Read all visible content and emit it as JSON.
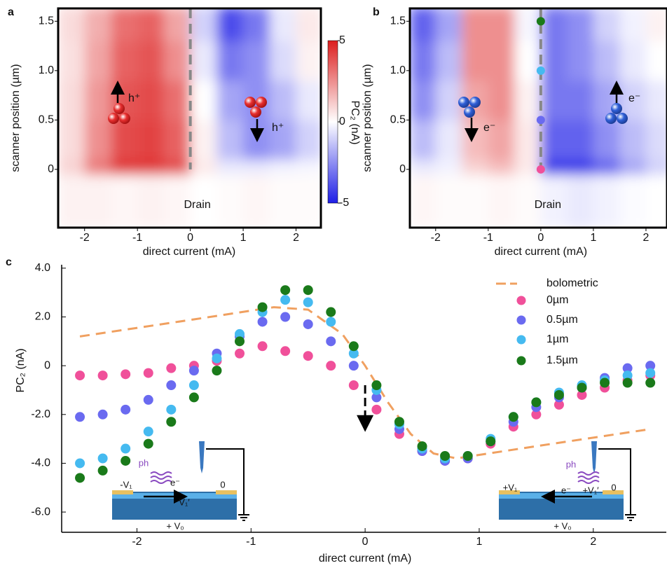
{
  "chart_data": [
    {
      "type": "heatmap",
      "panel_label": "a",
      "x_label": "direct current (mA)",
      "y_label": "scanner position (µm)",
      "xlim": [
        -2.5,
        2.47
      ],
      "ylim": [
        -0.59,
        1.63
      ],
      "xticks": [
        -2,
        -1,
        0,
        1,
        2
      ],
      "yticks": [
        0,
        0.5,
        {
          "value": 1,
          "label": "1.0"
        },
        1.5
      ],
      "x_edges": [
        -2.5,
        -2,
        -1.5,
        -1,
        -0.5,
        0,
        0.5,
        1,
        1.5,
        2,
        2.5
      ],
      "y_edges": [
        -0.6,
        -0.05,
        0.1,
        0.5,
        0.9,
        1.3,
        1.65
      ],
      "z": [
        [
          0.3,
          0.3,
          0.2,
          0.3,
          0.2,
          0,
          0.1,
          0.2,
          0.1,
          0.1
        ],
        [
          1,
          3,
          4.5,
          4.5,
          4,
          0.5,
          -0.5,
          -0.5,
          -0.3,
          -0.2
        ],
        [
          0.8,
          2.5,
          4,
          4.2,
          3.5,
          0.3,
          -1.5,
          -2.5,
          -2,
          -1
        ],
        [
          0.8,
          2.3,
          3.8,
          4,
          3.2,
          0,
          -2,
          -2.5,
          -1.5,
          -0.5
        ],
        [
          0.7,
          2,
          3.5,
          3.8,
          2.5,
          -0.5,
          -3,
          -2.5,
          -0.8,
          0.3
        ],
        [
          0.8,
          1.8,
          3.2,
          3.5,
          2,
          -1,
          -4,
          -3,
          -0.5,
          0.5
        ]
      ],
      "zlim": [
        -5,
        5
      ],
      "zticks": [
        -5,
        0,
        5
      ],
      "colorbar_label": "PC₂ (nA)",
      "divider_x": 0,
      "annotations": [
        "h⁺",
        "h⁺",
        "Drain"
      ]
    },
    {
      "type": "heatmap",
      "panel_label": "b",
      "x_label": "direct current (mA)",
      "y_label": "scanner position (µm)",
      "xlim": [
        -2.49,
        2.4
      ],
      "ylim": [
        -0.59,
        1.63
      ],
      "xticks": [
        -2,
        -1,
        0,
        1,
        2
      ],
      "yticks": [
        0,
        0.5,
        {
          "value": 1,
          "label": "1.0"
        },
        1.5
      ],
      "x_edges": [
        -2.5,
        -2,
        -1.5,
        -1,
        -0.5,
        0,
        0.5,
        1,
        1.5,
        2,
        2.5
      ],
      "y_edges": [
        -0.6,
        -0.05,
        0.1,
        0.5,
        0.9,
        1.3,
        1.65
      ],
      "z": [
        [
          0.2,
          0.1,
          0.1,
          0.2,
          0.1,
          -0.3,
          -0.5,
          -0.3,
          -0.1,
          0
        ],
        [
          -0.5,
          -0.3,
          1,
          1.5,
          0.5,
          -4.5,
          -4.5,
          -3.5,
          -2,
          -1
        ],
        [
          -1.5,
          -0.5,
          1.5,
          2,
          0.5,
          -3.5,
          -3.5,
          -2.5,
          -1.5,
          -0.8
        ],
        [
          -2.5,
          -1,
          2,
          2.5,
          0.3,
          -3,
          -3,
          -2,
          -1,
          -0.5
        ],
        [
          -3,
          -1.5,
          2.5,
          2.5,
          0,
          -3,
          -2.5,
          -1.5,
          -0.5,
          0
        ],
        [
          -3.5,
          -2,
          2.5,
          2.5,
          -0.2,
          -3,
          -2.5,
          -1,
          -0.3,
          0.3
        ]
      ],
      "zlim": [
        -5,
        5
      ],
      "divider_x": 0,
      "markers": {
        "x": [
          0,
          0,
          0,
          0
        ],
        "y": [
          0,
          0.5,
          1,
          1.5
        ],
        "colors": [
          "#f0509a",
          "#6a6af0",
          "#45baf0",
          "#1a7a1a"
        ]
      },
      "annotations": [
        "e⁻",
        "e⁻",
        "Drain"
      ]
    },
    {
      "type": "scatter",
      "panel_label": "c",
      "x_label": "direct current (mA)",
      "y_label": "PC₂ (nA)",
      "xlim": [
        -2.66,
        2.64
      ],
      "ylim": [
        -6.83,
        4.14
      ],
      "xticks": [
        -2,
        -1,
        0,
        1,
        2
      ],
      "yticks": [
        {
          "value": 4,
          "label": "4.0"
        },
        {
          "value": 2,
          "label": "2.0"
        },
        0,
        {
          "value": -2,
          "label": "-2.0"
        },
        {
          "value": -4,
          "label": "-4.0"
        },
        {
          "value": -6,
          "label": "-6.0"
        }
      ],
      "x": [
        -2.5,
        -2.3,
        -2.1,
        -1.9,
        -1.7,
        -1.5,
        -1.3,
        -1.1,
        -0.9,
        -0.7,
        -0.5,
        -0.3,
        -0.1,
        0.1,
        0.3,
        0.5,
        0.7,
        0.9,
        1.1,
        1.3,
        1.5,
        1.7,
        1.9,
        2.1,
        2.3,
        2.5
      ],
      "series": [
        {
          "name": "bolometric",
          "color": "#f0a060",
          "style": "dashed",
          "x": [
            -2.5,
            -1.5,
            -0.8,
            -0.5,
            -0.2,
            0,
            0.2,
            0.4,
            0.6,
            0.8,
            1.5,
            2.5
          ],
          "values": [
            1.2,
            1.9,
            2.4,
            2.3,
            1.3,
            0,
            -1.5,
            -2.8,
            -3.6,
            -3.8,
            -3.3,
            -2.6
          ]
        },
        {
          "name": "0µm",
          "color": "#f0509a",
          "values": [
            -0.4,
            -0.4,
            -0.35,
            -0.3,
            -0.1,
            0,
            0.2,
            0.5,
            0.8,
            0.6,
            0.4,
            0,
            -0.8,
            -1.8,
            -2.8,
            -3.5,
            -3.9,
            -3.8,
            -3.2,
            -2.5,
            -2,
            -1.6,
            -1.2,
            -0.9,
            -0.6,
            -0.4
          ]
        },
        {
          "name": "0.5µm",
          "color": "#6a6af0",
          "values": [
            -2.1,
            -2,
            -1.8,
            -1.4,
            -0.8,
            -0.2,
            0.5,
            1.2,
            1.8,
            2,
            1.7,
            1,
            0,
            -1.3,
            -2.6,
            -3.5,
            -3.9,
            -3.8,
            -3.1,
            -2.3,
            -1.7,
            -1.3,
            -0.9,
            -0.5,
            -0.1,
            0
          ]
        },
        {
          "name": "1µm",
          "color": "#45baf0",
          "values": [
            -4,
            -3.8,
            -3.4,
            -2.7,
            -1.8,
            -0.8,
            0.3,
            1.3,
            2.2,
            2.7,
            2.6,
            1.8,
            0.5,
            -1,
            -2.4,
            -3.4,
            -3.8,
            -3.7,
            -3,
            -2.1,
            -1.5,
            -1.1,
            -0.8,
            -0.6,
            -0.4,
            -0.3
          ]
        },
        {
          "name": "1.5µm",
          "color": "#1a7a1a",
          "values": [
            -4.6,
            -4.3,
            -3.9,
            -3.2,
            -2.3,
            -1.3,
            -0.2,
            1,
            2.4,
            3.1,
            3.1,
            2.2,
            0.8,
            -0.8,
            -2.3,
            -3.3,
            -3.7,
            -3.7,
            -3.1,
            -2.1,
            -1.5,
            -1.2,
            -0.9,
            -0.7,
            -0.7,
            -0.7
          ]
        }
      ],
      "arrow": {
        "x": 0,
        "from": -0.8,
        "to": -2.6
      },
      "inset_left": [
        "ph",
        "e⁻",
        "-V₁",
        "V₁′",
        "0",
        "+ V₀"
      ],
      "inset_right": [
        "ph",
        "e⁻",
        "+V₁",
        "+V₁′",
        "0",
        "+ V₀"
      ]
    }
  ]
}
